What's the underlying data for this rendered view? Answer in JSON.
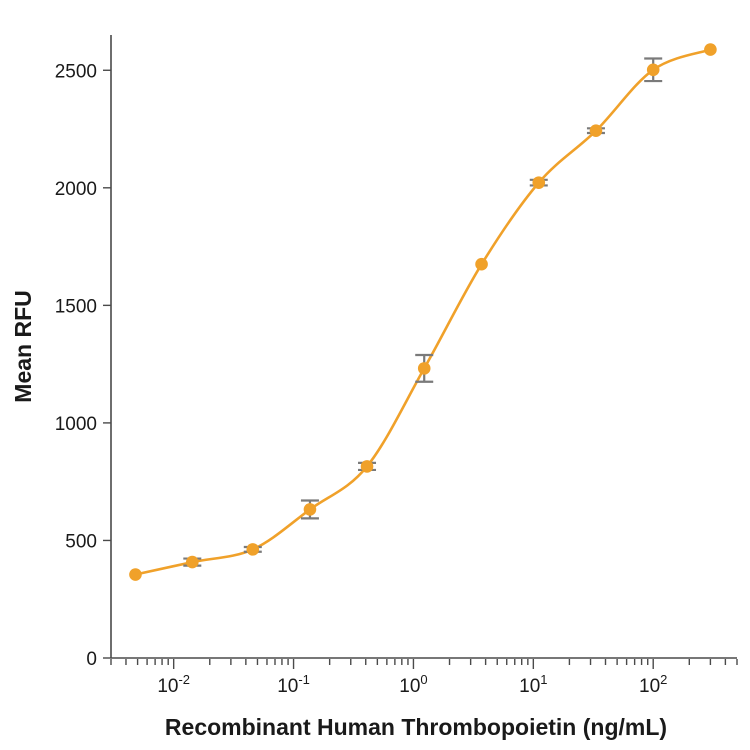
{
  "chart_data": {
    "type": "scatter",
    "title": "",
    "xlabel": "Recombinant Human Thrombopoietin (ng/mL)",
    "ylabel": "Mean RFU",
    "x_scale": "log",
    "xlim": [
      0.003,
      500
    ],
    "ylim": [
      0,
      2650
    ],
    "x_ticks": [
      {
        "value": 0.01,
        "base": "10",
        "exp": "-2"
      },
      {
        "value": 0.1,
        "base": "10",
        "exp": "-1"
      },
      {
        "value": 1,
        "base": "10",
        "exp": "0"
      },
      {
        "value": 10,
        "base": "10",
        "exp": "1"
      },
      {
        "value": 100,
        "base": "10",
        "exp": "2"
      }
    ],
    "y_ticks": [
      0,
      500,
      1000,
      1500,
      2000,
      2500
    ],
    "grid": false,
    "legend": "none",
    "series": [
      {
        "x": [
          0.0048,
          0.0143,
          0.0457,
          0.137,
          0.41,
          1.23,
          3.7,
          11.1,
          33.3,
          100,
          300
        ],
        "y": [
          355,
          408,
          462,
          632,
          815,
          1232,
          1675,
          2022,
          2243,
          2502,
          2588
        ],
        "error": [
          0,
          15,
          10,
          38,
          15,
          57,
          0,
          12,
          10,
          48,
          0
        ],
        "color": "#f0a12a"
      }
    ],
    "fit_curve": {
      "color": "#f0a12a"
    },
    "error_bar_color": "#7a7a7a"
  }
}
